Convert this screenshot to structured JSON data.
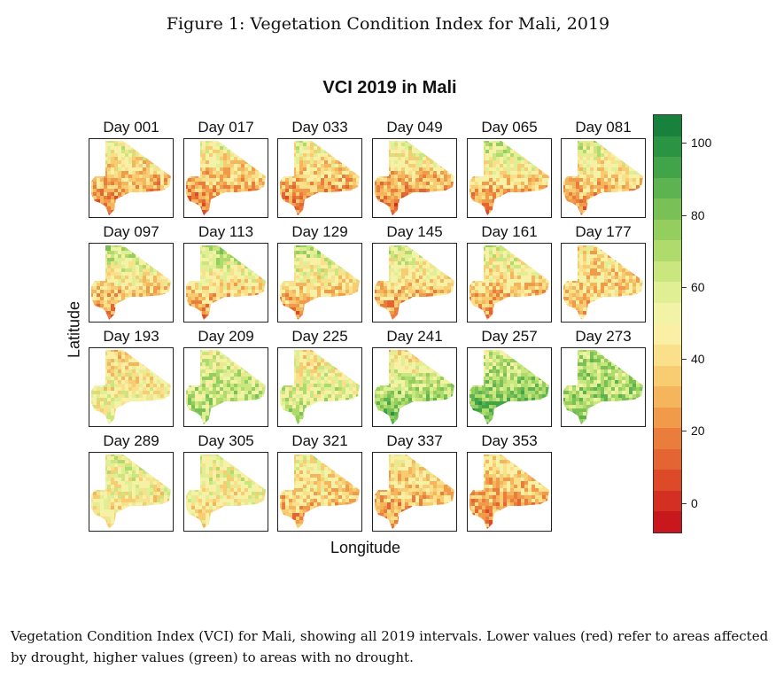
{
  "figure_caption": "Figure 1: Vegetation Condition Index for Mali, 2019",
  "caption": "Vegetation Condition Index (VCI) for Mali, showing all 2019 intervals. Lower values (red) refer to areas affected by drought, higher values (green) to areas with no drought.",
  "chart_data": {
    "type": "heatmap",
    "title": "VCI 2019 in Mali",
    "xlabel": "Longitude",
    "ylabel": "Latitude",
    "panels": [
      {
        "label": "Day 001",
        "north": 55,
        "south": 12
      },
      {
        "label": "Day 017",
        "north": 55,
        "south": 12
      },
      {
        "label": "Day 033",
        "north": 55,
        "south": 12
      },
      {
        "label": "Day 049",
        "north": 58,
        "south": 8
      },
      {
        "label": "Day 065",
        "north": 65,
        "south": 14
      },
      {
        "label": "Day 081",
        "north": 62,
        "south": 15
      },
      {
        "label": "Day 097",
        "north": 68,
        "south": 15
      },
      {
        "label": "Day 113",
        "north": 72,
        "south": 15
      },
      {
        "label": "Day 129",
        "north": 68,
        "south": 18
      },
      {
        "label": "Day 145",
        "north": 62,
        "south": 18
      },
      {
        "label": "Day 161",
        "north": 60,
        "south": 20
      },
      {
        "label": "Day 177",
        "north": 42,
        "south": 35
      },
      {
        "label": "Day 193",
        "north": 42,
        "south": 55
      },
      {
        "label": "Day 209",
        "north": 55,
        "south": 70
      },
      {
        "label": "Day 225",
        "north": 42,
        "south": 72
      },
      {
        "label": "Day 241",
        "north": 40,
        "south": 95
      },
      {
        "label": "Day 257",
        "north": 58,
        "south": 90
      },
      {
        "label": "Day 273",
        "north": 68,
        "south": 72
      },
      {
        "label": "Day 289",
        "north": 58,
        "south": 38
      },
      {
        "label": "Day 305",
        "north": 56,
        "south": 42
      },
      {
        "label": "Day 321",
        "north": 52,
        "south": 25
      },
      {
        "label": "Day 337",
        "north": 50,
        "south": 20
      },
      {
        "label": "Day 353",
        "north": 45,
        "south": 18
      }
    ],
    "colorbar": {
      "range": [
        -8,
        108
      ],
      "ticks": [
        0,
        20,
        40,
        60,
        80,
        100
      ],
      "colors": [
        "#c8181d",
        "#d32f22",
        "#dc4a2a",
        "#e46433",
        "#eb7d3c",
        "#f19a49",
        "#f5b55c",
        "#f8cd72",
        "#fae08a",
        "#fbefa6",
        "#f3f3a8",
        "#e0ef94",
        "#c9e67f",
        "#afdb6d",
        "#94ce5f",
        "#79c156",
        "#5db34f",
        "#42a449",
        "#2b9443",
        "#18813c"
      ]
    }
  }
}
